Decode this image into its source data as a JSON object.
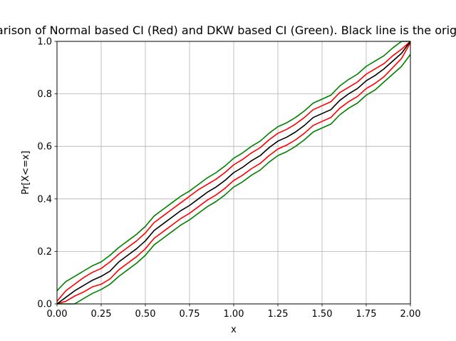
{
  "chart_data": {
    "type": "line",
    "title": "Comparison of Normal based CI (Red) and DKW based CI (Green). Black line is the original CDF",
    "xlabel": "x",
    "ylabel": "Pr[X<=x]",
    "xlim": [
      0,
      2
    ],
    "ylim": [
      0,
      1
    ],
    "grid": true,
    "legend": "none",
    "x_ticks": [
      "0.00",
      "0.25",
      "0.50",
      "0.75",
      "1.00",
      "1.25",
      "1.50",
      "1.75",
      "2.00"
    ],
    "y_ticks": [
      "0.0",
      "0.2",
      "0.4",
      "0.6",
      "0.8",
      "1.0"
    ],
    "series": [
      {
        "role": "ecdf",
        "color": "#000000",
        "x": [
          0.0,
          0.05,
          0.1,
          0.15,
          0.2,
          0.25,
          0.3,
          0.35,
          0.4,
          0.45,
          0.5,
          0.55,
          0.6,
          0.65,
          0.7,
          0.75,
          0.8,
          0.85,
          0.9,
          0.95,
          1.0,
          1.05,
          1.1,
          1.15,
          1.2,
          1.25,
          1.3,
          1.35,
          1.4,
          1.45,
          1.5,
          1.55,
          1.6,
          1.65,
          1.7,
          1.75,
          1.8,
          1.85,
          1.9,
          1.95,
          2.0
        ],
        "y": [
          0.0,
          0.025,
          0.05,
          0.07,
          0.09,
          0.105,
          0.125,
          0.16,
          0.185,
          0.21,
          0.24,
          0.28,
          0.305,
          0.33,
          0.355,
          0.375,
          0.4,
          0.425,
          0.445,
          0.47,
          0.5,
          0.52,
          0.545,
          0.565,
          0.595,
          0.62,
          0.635,
          0.655,
          0.68,
          0.71,
          0.725,
          0.74,
          0.775,
          0.8,
          0.82,
          0.85,
          0.87,
          0.895,
          0.925,
          0.955,
          1.0
        ]
      },
      {
        "role": "normal-ci-upper",
        "color": "#ff0000",
        "x": [
          0.0,
          0.05,
          0.1,
          0.15,
          0.2,
          0.25,
          0.3,
          0.35,
          0.4,
          0.45,
          0.5,
          0.55,
          0.6,
          0.65,
          0.7,
          0.75,
          0.8,
          0.85,
          0.9,
          0.95,
          1.0,
          1.05,
          1.1,
          1.15,
          1.2,
          1.25,
          1.3,
          1.35,
          1.4,
          1.45,
          1.5,
          1.55,
          1.6,
          1.65,
          1.7,
          1.75,
          1.8,
          1.85,
          1.9,
          1.95,
          2.0
        ],
        "y": [
          0.01,
          0.05,
          0.075,
          0.1,
          0.12,
          0.135,
          0.16,
          0.19,
          0.215,
          0.24,
          0.27,
          0.31,
          0.335,
          0.36,
          0.385,
          0.41,
          0.435,
          0.455,
          0.475,
          0.5,
          0.53,
          0.55,
          0.575,
          0.595,
          0.625,
          0.65,
          0.665,
          0.685,
          0.71,
          0.74,
          0.755,
          0.77,
          0.805,
          0.825,
          0.845,
          0.875,
          0.895,
          0.915,
          0.945,
          0.97,
          1.0
        ]
      },
      {
        "role": "normal-ci-lower",
        "color": "#ff0000",
        "x": [
          0.0,
          0.05,
          0.1,
          0.15,
          0.2,
          0.25,
          0.3,
          0.35,
          0.4,
          0.45,
          0.5,
          0.55,
          0.6,
          0.65,
          0.7,
          0.75,
          0.8,
          0.85,
          0.9,
          0.95,
          1.0,
          1.05,
          1.1,
          1.15,
          1.2,
          1.25,
          1.3,
          1.35,
          1.4,
          1.45,
          1.5,
          1.55,
          1.6,
          1.65,
          1.7,
          1.75,
          1.8,
          1.85,
          1.9,
          1.95,
          2.0
        ],
        "y": [
          0.0,
          0.01,
          0.03,
          0.045,
          0.065,
          0.075,
          0.095,
          0.13,
          0.155,
          0.18,
          0.21,
          0.25,
          0.275,
          0.3,
          0.325,
          0.345,
          0.37,
          0.395,
          0.415,
          0.44,
          0.47,
          0.49,
          0.515,
          0.535,
          0.565,
          0.59,
          0.605,
          0.625,
          0.65,
          0.68,
          0.695,
          0.71,
          0.745,
          0.77,
          0.79,
          0.82,
          0.84,
          0.865,
          0.9,
          0.935,
          0.995
        ]
      },
      {
        "role": "dkw-ci-upper",
        "color": "#008000",
        "x": [
          0.0,
          0.05,
          0.1,
          0.15,
          0.2,
          0.25,
          0.3,
          0.35,
          0.4,
          0.45,
          0.5,
          0.55,
          0.6,
          0.65,
          0.7,
          0.75,
          0.8,
          0.85,
          0.9,
          0.95,
          1.0,
          1.05,
          1.1,
          1.15,
          1.2,
          1.25,
          1.3,
          1.35,
          1.4,
          1.45,
          1.5,
          1.55,
          1.6,
          1.65,
          1.7,
          1.75,
          1.8,
          1.85,
          1.9,
          1.95,
          2.0
        ],
        "y": [
          0.05,
          0.085,
          0.105,
          0.125,
          0.145,
          0.16,
          0.185,
          0.215,
          0.24,
          0.265,
          0.295,
          0.335,
          0.36,
          0.385,
          0.41,
          0.43,
          0.455,
          0.48,
          0.5,
          0.525,
          0.555,
          0.575,
          0.6,
          0.62,
          0.65,
          0.675,
          0.69,
          0.71,
          0.735,
          0.765,
          0.78,
          0.795,
          0.83,
          0.855,
          0.875,
          0.905,
          0.925,
          0.945,
          0.975,
          1.0,
          1.0
        ]
      },
      {
        "role": "dkw-ci-lower",
        "color": "#008000",
        "x": [
          0.0,
          0.05,
          0.1,
          0.15,
          0.2,
          0.25,
          0.3,
          0.35,
          0.4,
          0.45,
          0.5,
          0.55,
          0.6,
          0.65,
          0.7,
          0.75,
          0.8,
          0.85,
          0.9,
          0.95,
          1.0,
          1.05,
          1.1,
          1.15,
          1.2,
          1.25,
          1.3,
          1.35,
          1.4,
          1.45,
          1.5,
          1.55,
          1.6,
          1.65,
          1.7,
          1.75,
          1.8,
          1.85,
          1.9,
          1.95,
          2.0
        ],
        "y": [
          0.0,
          0.0,
          0.0,
          0.02,
          0.04,
          0.055,
          0.075,
          0.105,
          0.13,
          0.155,
          0.185,
          0.225,
          0.25,
          0.275,
          0.3,
          0.32,
          0.345,
          0.37,
          0.39,
          0.415,
          0.445,
          0.465,
          0.49,
          0.51,
          0.54,
          0.565,
          0.58,
          0.6,
          0.625,
          0.655,
          0.67,
          0.685,
          0.72,
          0.745,
          0.765,
          0.795,
          0.815,
          0.845,
          0.875,
          0.905,
          0.95
        ]
      }
    ]
  }
}
